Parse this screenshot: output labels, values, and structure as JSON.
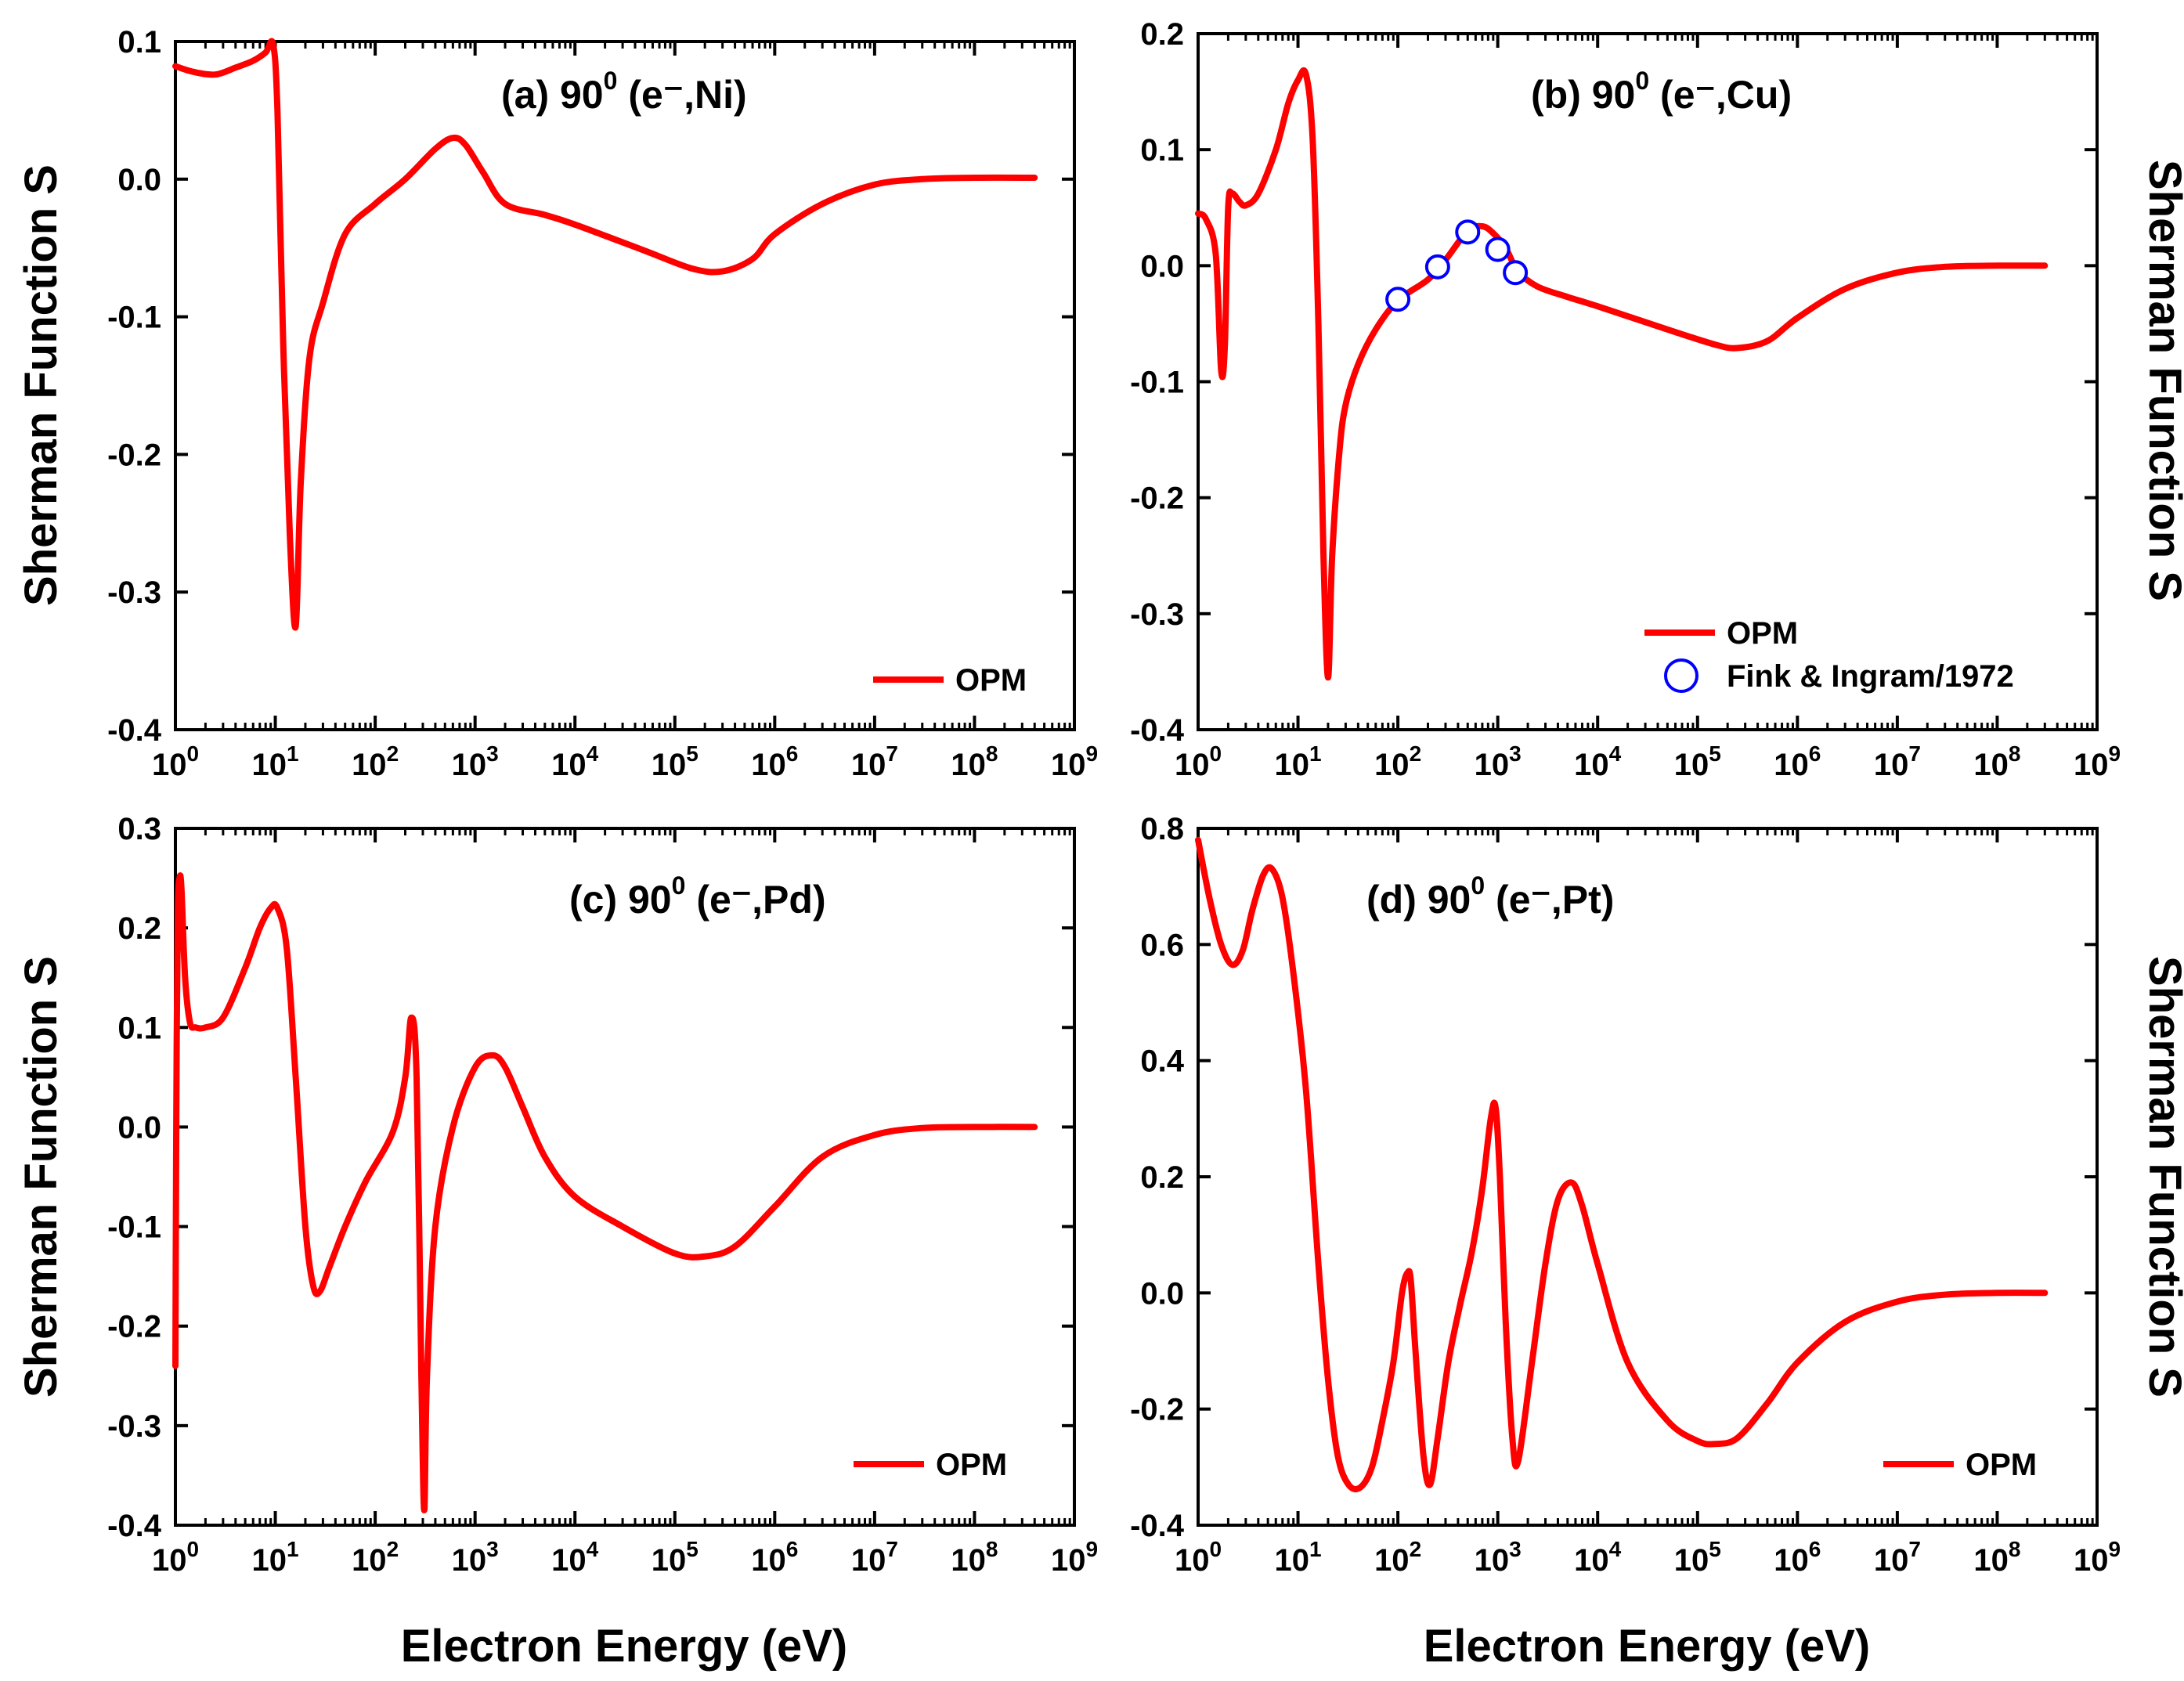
{
  "figure": {
    "shared_xlabel": "Electron Energy (eV)",
    "shared_ylabel": "Sherman Function S"
  },
  "colors": {
    "curve": "#ff0000",
    "marker": "#0000ff",
    "axis": "#000000",
    "background": "#ffffff"
  },
  "chart_data": [
    {
      "type": "line",
      "title": "(a) 90⁰ (e⁻,Ni)",
      "title_parts": {
        "label": "(a) 90",
        "sup": "0",
        "rest": " (e⁻,Ni)"
      },
      "xlabel": "",
      "ylabel": "Sherman Function S",
      "xscale": "log",
      "xlim": [
        1,
        1000000000
      ],
      "ylim": [
        -0.4,
        0.1
      ],
      "yticks": [
        "0.1",
        "0.0",
        "-0.1",
        "-0.2",
        "-0.3",
        "-0.4"
      ],
      "ytick_values": [
        0.1,
        0.0,
        -0.1,
        -0.2,
        -0.3,
        -0.4
      ],
      "xticks_base": [
        "10",
        "10",
        "10",
        "10",
        "10",
        "10",
        "10",
        "10",
        "10",
        "10"
      ],
      "xticks_exp": [
        "0",
        "1",
        "2",
        "3",
        "4",
        "5",
        "6",
        "7",
        "8",
        "9"
      ],
      "legend": {
        "location": "lower-right",
        "entries": [
          {
            "label": "OPM",
            "kind": "line"
          }
        ]
      },
      "series": [
        {
          "name": "OPM",
          "x": [
            1,
            1.5,
            2.5,
            4,
            6,
            8,
            9.5,
            10.5,
            12,
            14,
            16,
            18,
            22,
            30,
            50,
            100,
            200,
            400,
            600,
            800,
            1200,
            2000,
            5000,
            10000,
            50000,
            150000,
            300000,
            600000,
            1000000,
            3000000,
            10000000,
            30000000,
            100000000,
            400000000
          ],
          "y": [
            0.082,
            0.078,
            0.076,
            0.081,
            0.086,
            0.092,
            0.098,
            0.05,
            -0.12,
            -0.26,
            -0.325,
            -0.22,
            -0.13,
            -0.09,
            -0.04,
            -0.018,
            0.0,
            0.022,
            0.03,
            0.025,
            0.005,
            -0.018,
            -0.026,
            -0.033,
            -0.052,
            -0.065,
            -0.067,
            -0.058,
            -0.04,
            -0.018,
            -0.004,
            0.0,
            0.001,
            0.001
          ]
        }
      ],
      "markers": []
    },
    {
      "type": "line",
      "title": "(b) 90⁰ (e⁻,Cu)",
      "title_parts": {
        "label": "(b) 90",
        "sup": "0",
        "rest": " (e⁻,Cu)"
      },
      "xlabel": "",
      "ylabel": "Sherman Function S",
      "xscale": "log",
      "xlim": [
        1,
        1000000000
      ],
      "ylim": [
        -0.4,
        0.2
      ],
      "yticks": [
        "0.2",
        "0.1",
        "0.0",
        "-0.1",
        "-0.2",
        "-0.3",
        "-0.4"
      ],
      "ytick_values": [
        0.2,
        0.1,
        0.0,
        -0.1,
        -0.2,
        -0.3,
        -0.4
      ],
      "xticks_base": [
        "10",
        "10",
        "10",
        "10",
        "10",
        "10",
        "10",
        "10",
        "10",
        "10"
      ],
      "xticks_exp": [
        "0",
        "1",
        "2",
        "3",
        "4",
        "5",
        "6",
        "7",
        "8",
        "9"
      ],
      "legend": {
        "location": "lower-right",
        "entries": [
          {
            "label": "OPM",
            "kind": "line"
          },
          {
            "label": "Fink & Ingram/1972",
            "kind": "marker"
          }
        ]
      },
      "series": [
        {
          "name": "OPM",
          "x": [
            1,
            1.2,
            1.5,
            1.7,
            1.85,
            2.0,
            2.2,
            2.6,
            3.0,
            4.0,
            6,
            8,
            10,
            12,
            14,
            16,
            18,
            20,
            22,
            26,
            30,
            40,
            60,
            100,
            200,
            300,
            500,
            700,
            900,
            1200,
            1600,
            2500,
            5000,
            10000,
            50000,
            150000,
            250000,
            500000,
            1000000,
            3000000,
            10000000,
            30000000,
            100000000,
            300000000
          ],
          "y": [
            0.045,
            0.04,
            0.01,
            -0.09,
            -0.07,
            0.05,
            0.062,
            0.055,
            0.052,
            0.062,
            0.1,
            0.14,
            0.16,
            0.165,
            0.11,
            -0.05,
            -0.25,
            -0.355,
            -0.25,
            -0.16,
            -0.12,
            -0.085,
            -0.055,
            -0.03,
            -0.012,
            0.005,
            0.03,
            0.034,
            0.028,
            0.015,
            -0.005,
            -0.018,
            -0.027,
            -0.035,
            -0.055,
            -0.068,
            -0.071,
            -0.065,
            -0.045,
            -0.02,
            -0.006,
            -0.001,
            0.0,
            0.0
          ]
        }
      ],
      "markers": [
        {
          "name": "Fink & Ingram/1972",
          "x": [
            100,
            250,
            500,
            1000,
            1500
          ],
          "y": [
            -0.029,
            -0.001,
            0.029,
            0.014,
            -0.006
          ]
        }
      ]
    },
    {
      "type": "line",
      "title": "(c) 90⁰ (e⁻,Pd)",
      "title_parts": {
        "label": "(c) 90",
        "sup": "0",
        "rest": " (e⁻,Pd)"
      },
      "xlabel": "Electron Energy (eV)",
      "ylabel": "Sherman Function S",
      "xscale": "log",
      "xlim": [
        1,
        1000000000
      ],
      "ylim": [
        -0.4,
        0.3
      ],
      "yticks": [
        "0.3",
        "0.2",
        "0.1",
        "0.0",
        "-0.1",
        "-0.2",
        "-0.3",
        "-0.4"
      ],
      "ytick_values": [
        0.3,
        0.2,
        0.1,
        0.0,
        -0.1,
        -0.2,
        -0.3,
        -0.4
      ],
      "xticks_base": [
        "10",
        "10",
        "10",
        "10",
        "10",
        "10",
        "10",
        "10",
        "10",
        "10"
      ],
      "xticks_exp": [
        "0",
        "1",
        "2",
        "3",
        "4",
        "5",
        "6",
        "7",
        "8",
        "9"
      ],
      "legend": {
        "location": "lower-right",
        "entries": [
          {
            "label": "OPM",
            "kind": "line"
          }
        ]
      },
      "series": [
        {
          "name": "OPM",
          "x": [
            1,
            1.01,
            1.03,
            1.06,
            1.1,
            1.15,
            1.25,
            1.4,
            1.6,
            2.0,
            3,
            5,
            7,
            9,
            10.5,
            13,
            16,
            20,
            24,
            28,
            35,
            50,
            80,
            150,
            200,
            230,
            260,
            290,
            310,
            330,
            400,
            600,
            1000,
            1500,
            2000,
            3000,
            5000,
            10000,
            30000,
            100000,
            200000,
            400000,
            1000000,
            3000000,
            10000000,
            30000000,
            100000000,
            400000000
          ],
          "y": [
            -0.24,
            -0.1,
            0.08,
            0.22,
            0.25,
            0.24,
            0.15,
            0.105,
            0.1,
            0.1,
            0.11,
            0.16,
            0.2,
            0.22,
            0.22,
            0.18,
            0.05,
            -0.1,
            -0.16,
            -0.165,
            -0.14,
            -0.1,
            -0.055,
            -0.005,
            0.05,
            0.11,
            0.05,
            -0.25,
            -0.385,
            -0.25,
            -0.1,
            0.0,
            0.06,
            0.072,
            0.06,
            0.02,
            -0.03,
            -0.07,
            -0.1,
            -0.127,
            -0.13,
            -0.12,
            -0.08,
            -0.03,
            -0.008,
            -0.001,
            0.0,
            0.0
          ]
        }
      ],
      "markers": []
    },
    {
      "type": "line",
      "title": "(d) 90⁰ (e⁻,Pt)",
      "title_parts": {
        "label": "(d) 90",
        "sup": "0",
        "rest": " (e⁻,Pt)"
      },
      "xlabel": "Electron Energy (eV)",
      "ylabel": "Sherman Function S",
      "xscale": "log",
      "xlim": [
        1,
        1000000000
      ],
      "ylim": [
        -0.4,
        0.8
      ],
      "yticks": [
        "0.8",
        "0.6",
        "0.4",
        "0.2",
        "0.0",
        "-0.2",
        "-0.4"
      ],
      "ytick_values": [
        0.8,
        0.6,
        0.4,
        0.2,
        0.0,
        -0.2,
        -0.4
      ],
      "xticks_base": [
        "10",
        "10",
        "10",
        "10",
        "10",
        "10",
        "10",
        "10",
        "10",
        "10"
      ],
      "xticks_exp": [
        "0",
        "1",
        "2",
        "3",
        "4",
        "5",
        "6",
        "7",
        "8",
        "9"
      ],
      "legend": {
        "location": "lower-right",
        "entries": [
          {
            "label": "OPM",
            "kind": "line"
          }
        ]
      },
      "series": [
        {
          "name": "OPM",
          "x": [
            1,
            1.3,
            1.7,
            2.2,
            2.8,
            3.5,
            4.5,
            5.5,
            7,
            9,
            12,
            16,
            20,
            25,
            32,
            42,
            55,
            70,
            90,
            110,
            125,
            135,
            150,
            180,
            210,
            250,
            320,
            420,
            550,
            700,
            850,
            950,
            1050,
            1200,
            1400,
            1600,
            2200,
            3000,
            4000,
            5500,
            7000,
            10000,
            20000,
            50000,
            100000,
            150000,
            250000,
            500000,
            1000000,
            3000000,
            10000000,
            30000000,
            100000000,
            300000000
          ],
          "y": [
            0.78,
            0.68,
            0.6,
            0.565,
            0.59,
            0.66,
            0.72,
            0.73,
            0.68,
            0.55,
            0.35,
            0.05,
            -0.15,
            -0.28,
            -0.33,
            -0.335,
            -0.3,
            -0.22,
            -0.12,
            0.0,
            0.035,
            0.02,
            -0.1,
            -0.28,
            -0.33,
            -0.25,
            -0.12,
            -0.02,
            0.07,
            0.18,
            0.3,
            0.32,
            0.2,
            -0.05,
            -0.25,
            -0.29,
            -0.12,
            0.05,
            0.16,
            0.19,
            0.15,
            0.05,
            -0.12,
            -0.22,
            -0.255,
            -0.26,
            -0.25,
            -0.19,
            -0.12,
            -0.05,
            -0.015,
            -0.003,
            0.0,
            0.0
          ]
        }
      ],
      "markers": []
    }
  ]
}
